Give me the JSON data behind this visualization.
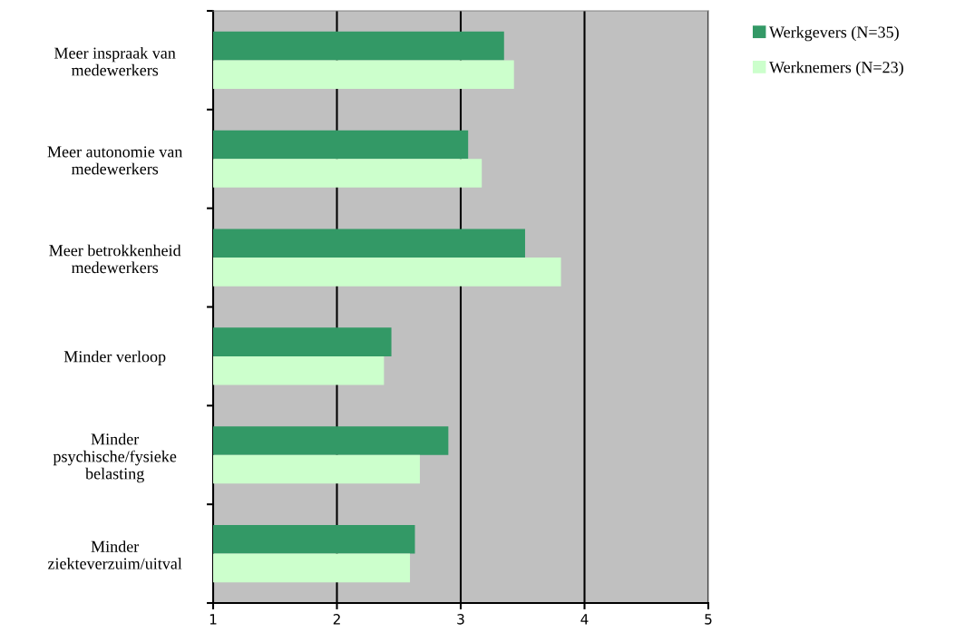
{
  "chart_data": {
    "type": "bar",
    "orientation": "horizontal",
    "categories": [
      "Meer inspraak van\nmedewerkers",
      "Meer autonomie van\nmedewerkers",
      "Meer betrokkenheid\nmedewerkers",
      "Minder verloop",
      "Minder\npsychische/fysieke\nbelasting",
      "Minder\nziekteverzuim/uitval"
    ],
    "series": [
      {
        "name": "Werkgevers (N=35)",
        "color": "#339966",
        "values": [
          3.35,
          3.06,
          3.52,
          2.44,
          2.9,
          2.63
        ]
      },
      {
        "name": "Werknemers (N=23)",
        "color": "#ccffcc",
        "values": [
          3.43,
          3.17,
          3.81,
          2.38,
          2.67,
          2.59
        ]
      }
    ],
    "xlim": [
      1,
      5
    ],
    "xticks": [
      1,
      2,
      3,
      4,
      5
    ],
    "grid": "x",
    "legend": "right"
  }
}
